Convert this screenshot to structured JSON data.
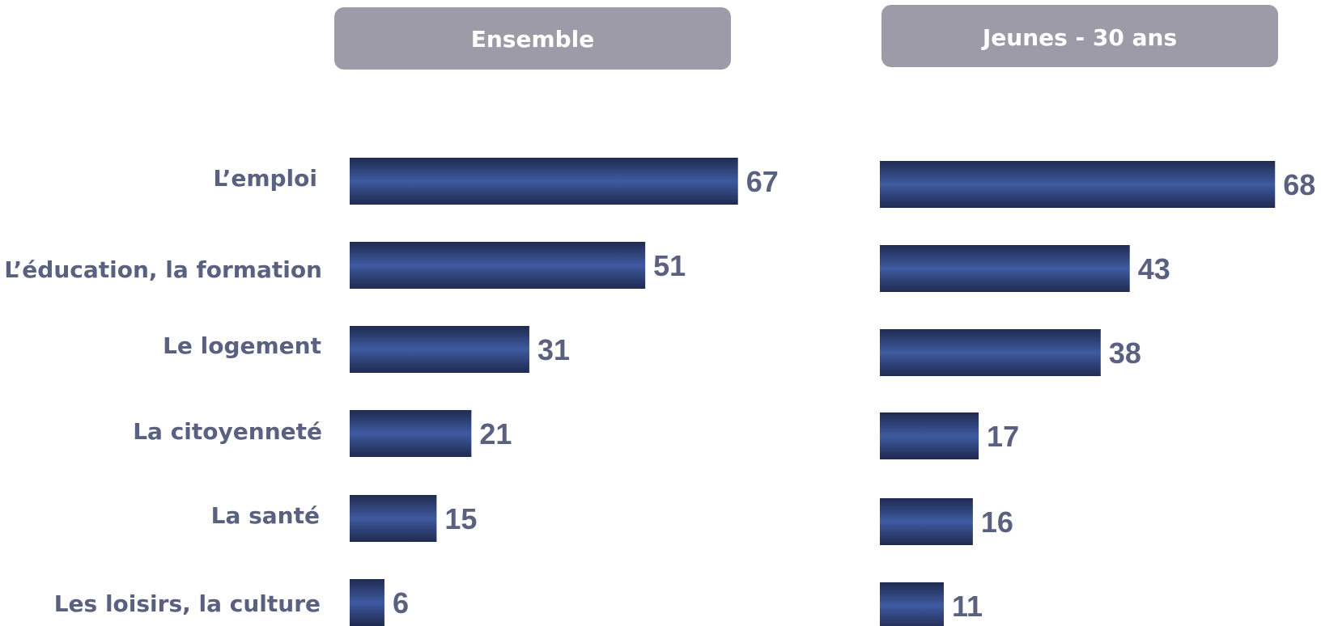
{
  "chart_data": [
    {
      "type": "bar",
      "orientation": "horizontal",
      "title": "Ensemble",
      "categories": [
        "L’emploi",
        "L’éducation, la formation",
        "Le logement",
        "La citoyenneté",
        "La santé",
        "Les loisirs, la culture"
      ],
      "values": [
        67,
        51,
        31,
        21,
        15,
        6
      ],
      "xlim": [
        0,
        67
      ],
      "xlabel": "",
      "ylabel": "",
      "grid": false,
      "legend": "none",
      "data_labels": true
    },
    {
      "type": "bar",
      "orientation": "horizontal",
      "title": "Jeunes - 30 ans",
      "categories": [
        "L’emploi",
        "L’éducation, la formation",
        "Le logement",
        "La citoyenneté",
        "La santé",
        "Les loisirs, la culture"
      ],
      "values": [
        68,
        43,
        38,
        17,
        16,
        11
      ],
      "xlim": [
        0,
        68
      ],
      "xlabel": "",
      "ylabel": "",
      "grid": false,
      "legend": "none",
      "data_labels": true
    }
  ],
  "colors": {
    "bar_dark": "#1f2a4f",
    "bar_light": "#3f5aa0",
    "header_bg": "#9e9ba8",
    "header_text": "#ffffff",
    "label_text": "#5a6180"
  }
}
